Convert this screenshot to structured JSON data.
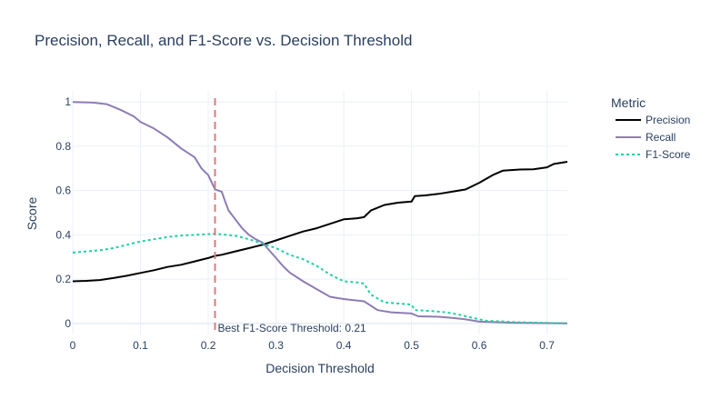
{
  "chart_data": {
    "type": "line",
    "title": "Precision, Recall, and F1-Score vs. Decision Threshold",
    "xlabel": "Decision Threshold",
    "ylabel": "Score",
    "xlim": [
      0,
      0.73
    ],
    "ylim": [
      -0.05,
      1.05
    ],
    "x_ticks": [
      0,
      0.1,
      0.2,
      0.3,
      0.4,
      0.5,
      0.6,
      0.7
    ],
    "x_tick_labels": [
      "0",
      "0.1",
      "0.2",
      "0.3",
      "0.4",
      "0.5",
      "0.6",
      "0.7"
    ],
    "y_ticks": [
      0,
      0.2,
      0.4,
      0.6,
      0.8,
      1
    ],
    "y_tick_labels": [
      "0",
      "0.2",
      "0.4",
      "0.6",
      "0.8",
      "1"
    ],
    "grid": true,
    "legend": {
      "title": "Metric",
      "placement": "right"
    },
    "series": [
      {
        "name": "Precision",
        "color": "#000000",
        "dash": "solid",
        "points": [
          [
            0.0,
            0.19
          ],
          [
            0.02,
            0.192
          ],
          [
            0.04,
            0.196
          ],
          [
            0.06,
            0.205
          ],
          [
            0.08,
            0.215
          ],
          [
            0.1,
            0.228
          ],
          [
            0.12,
            0.24
          ],
          [
            0.14,
            0.255
          ],
          [
            0.16,
            0.265
          ],
          [
            0.18,
            0.28
          ],
          [
            0.2,
            0.295
          ],
          [
            0.21,
            0.305
          ],
          [
            0.22,
            0.31
          ],
          [
            0.24,
            0.325
          ],
          [
            0.26,
            0.34
          ],
          [
            0.28,
            0.355
          ],
          [
            0.3,
            0.375
          ],
          [
            0.32,
            0.395
          ],
          [
            0.34,
            0.415
          ],
          [
            0.36,
            0.43
          ],
          [
            0.38,
            0.45
          ],
          [
            0.4,
            0.47
          ],
          [
            0.42,
            0.475
          ],
          [
            0.43,
            0.48
          ],
          [
            0.44,
            0.51
          ],
          [
            0.46,
            0.535
          ],
          [
            0.48,
            0.545
          ],
          [
            0.5,
            0.55
          ],
          [
            0.505,
            0.575
          ],
          [
            0.52,
            0.578
          ],
          [
            0.54,
            0.585
          ],
          [
            0.56,
            0.595
          ],
          [
            0.58,
            0.605
          ],
          [
            0.6,
            0.635
          ],
          [
            0.62,
            0.67
          ],
          [
            0.635,
            0.69
          ],
          [
            0.66,
            0.695
          ],
          [
            0.68,
            0.696
          ],
          [
            0.7,
            0.705
          ],
          [
            0.71,
            0.72
          ],
          [
            0.73,
            0.73
          ]
        ]
      },
      {
        "name": "Recall",
        "color": "#8e7cb4",
        "dash": "solid",
        "points": [
          [
            0.0,
            1.0
          ],
          [
            0.03,
            0.997
          ],
          [
            0.05,
            0.99
          ],
          [
            0.07,
            0.965
          ],
          [
            0.09,
            0.935
          ],
          [
            0.1,
            0.91
          ],
          [
            0.12,
            0.88
          ],
          [
            0.14,
            0.84
          ],
          [
            0.16,
            0.79
          ],
          [
            0.18,
            0.75
          ],
          [
            0.19,
            0.7
          ],
          [
            0.2,
            0.67
          ],
          [
            0.21,
            0.605
          ],
          [
            0.22,
            0.595
          ],
          [
            0.225,
            0.55
          ],
          [
            0.23,
            0.51
          ],
          [
            0.24,
            0.47
          ],
          [
            0.25,
            0.43
          ],
          [
            0.26,
            0.4
          ],
          [
            0.27,
            0.38
          ],
          [
            0.28,
            0.365
          ],
          [
            0.29,
            0.33
          ],
          [
            0.3,
            0.295
          ],
          [
            0.31,
            0.26
          ],
          [
            0.32,
            0.23
          ],
          [
            0.34,
            0.19
          ],
          [
            0.36,
            0.155
          ],
          [
            0.38,
            0.12
          ],
          [
            0.4,
            0.11
          ],
          [
            0.43,
            0.1
          ],
          [
            0.45,
            0.06
          ],
          [
            0.47,
            0.05
          ],
          [
            0.5,
            0.045
          ],
          [
            0.51,
            0.032
          ],
          [
            0.54,
            0.03
          ],
          [
            0.56,
            0.025
          ],
          [
            0.58,
            0.018
          ],
          [
            0.6,
            0.008
          ],
          [
            0.65,
            0.003
          ],
          [
            0.73,
            0.0
          ]
        ]
      },
      {
        "name": "F1-Score",
        "color": "#1fcf9f",
        "dash": "dot",
        "points": [
          [
            0.0,
            0.32
          ],
          [
            0.02,
            0.325
          ],
          [
            0.04,
            0.33
          ],
          [
            0.06,
            0.34
          ],
          [
            0.08,
            0.355
          ],
          [
            0.1,
            0.37
          ],
          [
            0.12,
            0.38
          ],
          [
            0.14,
            0.39
          ],
          [
            0.16,
            0.397
          ],
          [
            0.18,
            0.4
          ],
          [
            0.2,
            0.403
          ],
          [
            0.21,
            0.405
          ],
          [
            0.22,
            0.402
          ],
          [
            0.24,
            0.396
          ],
          [
            0.26,
            0.38
          ],
          [
            0.28,
            0.36
          ],
          [
            0.3,
            0.34
          ],
          [
            0.32,
            0.31
          ],
          [
            0.34,
            0.29
          ],
          [
            0.36,
            0.26
          ],
          [
            0.38,
            0.22
          ],
          [
            0.4,
            0.19
          ],
          [
            0.42,
            0.185
          ],
          [
            0.43,
            0.18
          ],
          [
            0.44,
            0.13
          ],
          [
            0.46,
            0.095
          ],
          [
            0.48,
            0.09
          ],
          [
            0.5,
            0.085
          ],
          [
            0.505,
            0.06
          ],
          [
            0.53,
            0.056
          ],
          [
            0.55,
            0.05
          ],
          [
            0.57,
            0.04
          ],
          [
            0.59,
            0.025
          ],
          [
            0.61,
            0.012
          ],
          [
            0.66,
            0.005
          ],
          [
            0.73,
            0.0
          ]
        ]
      }
    ],
    "annotations": [
      {
        "type": "vline",
        "x": 0.21,
        "color": "#e07a7a",
        "dash": "dash",
        "label": "Best F1-Score Threshold: 0.21"
      }
    ]
  }
}
